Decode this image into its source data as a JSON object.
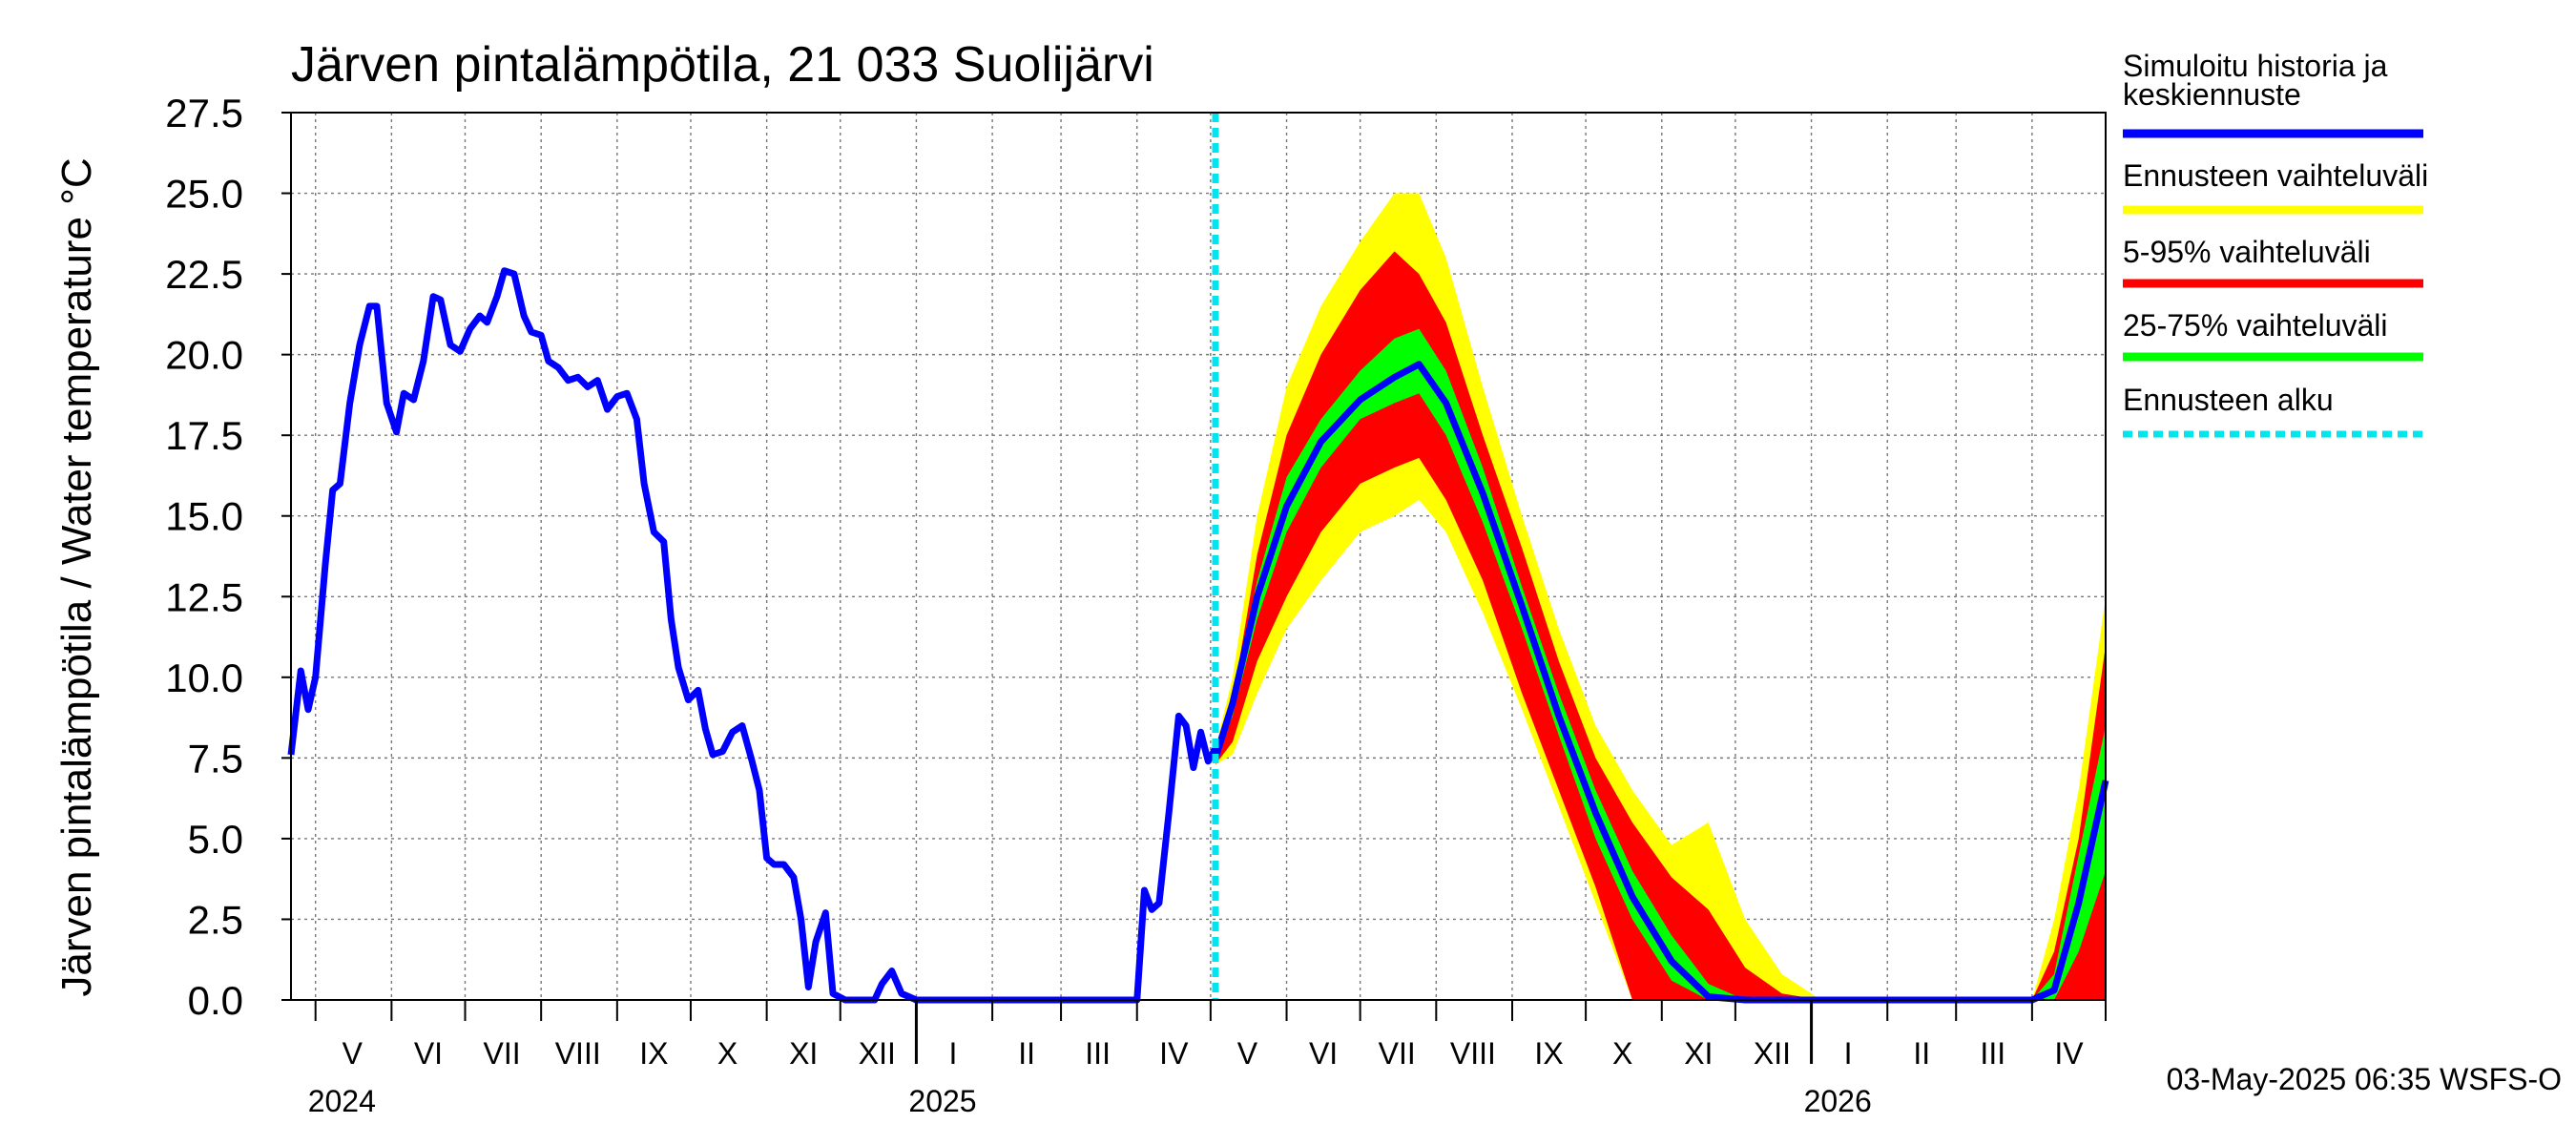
{
  "chart_data": {
    "type": "area",
    "title": "Järven pintalämpötila, 21 033 Suolijärvi",
    "ylabel": "Järven pintalämpötila / Water temperature °C",
    "xlabel": "",
    "ylim": [
      0,
      27.5
    ],
    "yticks": [
      "0.0",
      "2.5",
      "5.0",
      "7.5",
      "10.0",
      "12.5",
      "15.0",
      "17.5",
      "20.0",
      "22.5",
      "25.0",
      "27.5"
    ],
    "xlim": [
      "2024-04-21",
      "2026-05-01"
    ],
    "grid": true,
    "month_ticks": [
      "2024-05-01",
      "2024-06-01",
      "2024-07-01",
      "2024-08-01",
      "2024-09-01",
      "2024-10-01",
      "2024-11-01",
      "2024-12-01",
      "2025-01-01",
      "2025-02-01",
      "2025-03-01",
      "2025-04-01",
      "2025-05-01",
      "2025-06-01",
      "2025-07-01",
      "2025-08-01",
      "2025-09-01",
      "2025-10-01",
      "2025-11-01",
      "2025-12-01",
      "2026-01-01",
      "2026-02-01",
      "2026-03-01",
      "2026-04-01",
      "2026-05-01"
    ],
    "month_labels": [
      {
        "label": "V",
        "date": "2024-05-16"
      },
      {
        "label": "VI",
        "date": "2024-06-16"
      },
      {
        "label": "VII",
        "date": "2024-07-16"
      },
      {
        "label": "VIII",
        "date": "2024-08-16"
      },
      {
        "label": "IX",
        "date": "2024-09-16"
      },
      {
        "label": "X",
        "date": "2024-10-16"
      },
      {
        "label": "XI",
        "date": "2024-11-16"
      },
      {
        "label": "XII",
        "date": "2024-12-16"
      },
      {
        "label": "I",
        "date": "2025-01-16"
      },
      {
        "label": "II",
        "date": "2025-02-15"
      },
      {
        "label": "III",
        "date": "2025-03-16"
      },
      {
        "label": "IV",
        "date": "2025-04-16"
      },
      {
        "label": "V",
        "date": "2025-05-16"
      },
      {
        "label": "VI",
        "date": "2025-06-16"
      },
      {
        "label": "VII",
        "date": "2025-07-16"
      },
      {
        "label": "VIII",
        "date": "2025-08-16"
      },
      {
        "label": "IX",
        "date": "2025-09-16"
      },
      {
        "label": "X",
        "date": "2025-10-16"
      },
      {
        "label": "XI",
        "date": "2025-11-16"
      },
      {
        "label": "XII",
        "date": "2025-12-16"
      },
      {
        "label": "I",
        "date": "2026-01-16"
      },
      {
        "label": "II",
        "date": "2026-02-15"
      },
      {
        "label": "III",
        "date": "2026-03-16"
      },
      {
        "label": "IV",
        "date": "2026-04-16"
      }
    ],
    "year_labels": [
      {
        "label": "2024",
        "date": "2024-05-01"
      },
      {
        "label": "2025",
        "date": "2025-01-01"
      },
      {
        "label": "2026",
        "date": "2026-01-01"
      }
    ],
    "year_boundaries": [
      "2025-01-01",
      "2026-01-01"
    ],
    "forecast_start": "2025-05-03",
    "history": {
      "name": "Simuloitu historia ja keskiennuste",
      "color": "#0000ff",
      "points": [
        [
          "2024-04-21",
          7.6
        ],
        [
          "2024-04-25",
          10.2
        ],
        [
          "2024-04-28",
          9.0
        ],
        [
          "2024-05-01",
          10.0
        ],
        [
          "2024-05-05",
          13.5
        ],
        [
          "2024-05-08",
          15.8
        ],
        [
          "2024-05-11",
          16.0
        ],
        [
          "2024-05-15",
          18.5
        ],
        [
          "2024-05-19",
          20.3
        ],
        [
          "2024-05-23",
          21.5
        ],
        [
          "2024-05-26",
          21.5
        ],
        [
          "2024-05-30",
          18.5
        ],
        [
          "2024-06-03",
          17.6
        ],
        [
          "2024-06-06",
          18.8
        ],
        [
          "2024-06-10",
          18.6
        ],
        [
          "2024-06-14",
          19.8
        ],
        [
          "2024-06-18",
          21.8
        ],
        [
          "2024-06-21",
          21.7
        ],
        [
          "2024-06-25",
          20.3
        ],
        [
          "2024-06-29",
          20.1
        ],
        [
          "2024-07-03",
          20.8
        ],
        [
          "2024-07-07",
          21.2
        ],
        [
          "2024-07-10",
          21.0
        ],
        [
          "2024-07-14",
          21.8
        ],
        [
          "2024-07-17",
          22.6
        ],
        [
          "2024-07-21",
          22.5
        ],
        [
          "2024-07-25",
          21.2
        ],
        [
          "2024-07-28",
          20.7
        ],
        [
          "2024-08-01",
          20.6
        ],
        [
          "2024-08-04",
          19.8
        ],
        [
          "2024-08-08",
          19.6
        ],
        [
          "2024-08-12",
          19.2
        ],
        [
          "2024-08-16",
          19.3
        ],
        [
          "2024-08-20",
          19.0
        ],
        [
          "2024-08-24",
          19.2
        ],
        [
          "2024-08-28",
          18.3
        ],
        [
          "2024-09-01",
          18.7
        ],
        [
          "2024-09-05",
          18.8
        ],
        [
          "2024-09-09",
          18.0
        ],
        [
          "2024-09-12",
          16.0
        ],
        [
          "2024-09-16",
          14.5
        ],
        [
          "2024-09-20",
          14.2
        ],
        [
          "2024-09-23",
          11.8
        ],
        [
          "2024-09-26",
          10.3
        ],
        [
          "2024-09-30",
          9.3
        ],
        [
          "2024-10-04",
          9.6
        ],
        [
          "2024-10-07",
          8.4
        ],
        [
          "2024-10-10",
          7.6
        ],
        [
          "2024-10-14",
          7.7
        ],
        [
          "2024-10-18",
          8.3
        ],
        [
          "2024-10-22",
          8.5
        ],
        [
          "2024-10-26",
          7.4
        ],
        [
          "2024-10-29",
          6.5
        ],
        [
          "2024-11-01",
          4.4
        ],
        [
          "2024-11-04",
          4.2
        ],
        [
          "2024-11-08",
          4.2
        ],
        [
          "2024-11-12",
          3.8
        ],
        [
          "2024-11-15",
          2.5
        ],
        [
          "2024-11-18",
          0.4
        ],
        [
          "2024-11-21",
          1.8
        ],
        [
          "2024-11-25",
          2.7
        ],
        [
          "2024-11-28",
          0.2
        ],
        [
          "2024-12-03",
          0.0
        ],
        [
          "2024-12-10",
          0.0
        ],
        [
          "2024-12-15",
          0.0
        ],
        [
          "2024-12-18",
          0.5
        ],
        [
          "2024-12-22",
          0.9
        ],
        [
          "2024-12-26",
          0.2
        ],
        [
          "2025-01-01",
          0.0
        ],
        [
          "2025-02-01",
          0.0
        ],
        [
          "2025-03-01",
          0.0
        ],
        [
          "2025-04-01",
          0.0
        ],
        [
          "2025-04-04",
          3.4
        ],
        [
          "2025-04-07",
          2.8
        ],
        [
          "2025-04-10",
          3.0
        ],
        [
          "2025-04-14",
          5.8
        ],
        [
          "2025-04-18",
          8.8
        ],
        [
          "2025-04-21",
          8.5
        ],
        [
          "2025-04-24",
          7.2
        ],
        [
          "2025-04-27",
          8.3
        ],
        [
          "2025-04-30",
          7.4
        ],
        [
          "2025-05-03",
          7.8
        ]
      ]
    },
    "forecast": {
      "dates": [
        "2025-05-03",
        "2025-05-10",
        "2025-05-20",
        "2025-06-01",
        "2025-06-15",
        "2025-07-01",
        "2025-07-15",
        "2025-07-25",
        "2025-08-05",
        "2025-08-20",
        "2025-09-05",
        "2025-09-20",
        "2025-10-05",
        "2025-10-20",
        "2025-11-05",
        "2025-11-20",
        "2025-12-05",
        "2025-12-20",
        "2026-01-05",
        "2026-02-01",
        "2026-03-01",
        "2026-04-01",
        "2026-04-10",
        "2026-04-20",
        "2026-05-01"
      ],
      "bands": [
        {
          "name": "Ennusteen vaihteluväli",
          "color": "#ffff00",
          "lower": [
            7.3,
            7.6,
            9.5,
            11.5,
            13.0,
            14.5,
            15.0,
            15.5,
            14.5,
            12.0,
            9.0,
            6.0,
            3.0,
            0.0,
            0.0,
            0.0,
            0.0,
            0.0,
            0.0,
            0.0,
            0.0,
            0.0,
            0.0,
            0.0,
            0.0
          ],
          "upper": [
            7.8,
            10.0,
            15.0,
            19.0,
            21.5,
            23.5,
            25.0,
            25.0,
            23.0,
            19.0,
            15.0,
            11.5,
            8.5,
            6.5,
            4.8,
            5.5,
            2.5,
            0.8,
            0.0,
            0.0,
            0.0,
            0.0,
            2.5,
            6.5,
            12.5
          ]
        },
        {
          "name": "5-95% vaihteluväli",
          "color": "#ff0000",
          "lower": [
            7.3,
            8.0,
            10.5,
            12.5,
            14.5,
            16.0,
            16.5,
            16.8,
            15.5,
            13.0,
            9.5,
            6.5,
            3.5,
            0.0,
            0.0,
            0.0,
            0.0,
            0.0,
            0.0,
            0.0,
            0.0,
            0.0,
            0.0,
            0.0,
            0.0
          ],
          "upper": [
            7.6,
            9.3,
            13.8,
            17.5,
            20.0,
            22.0,
            23.2,
            22.5,
            21.0,
            17.5,
            14.0,
            10.5,
            7.5,
            5.5,
            3.8,
            2.8,
            1.0,
            0.2,
            0.0,
            0.0,
            0.0,
            0.0,
            1.5,
            5.0,
            11.0
          ]
        },
        {
          "name": "25-75% vaihteluväli",
          "color": "#00ff00",
          "lower": [
            7.5,
            8.8,
            11.8,
            14.5,
            16.5,
            18.0,
            18.5,
            18.8,
            17.5,
            14.8,
            11.5,
            8.2,
            5.0,
            2.5,
            0.6,
            0.0,
            0.0,
            0.0,
            0.0,
            0.0,
            0.0,
            0.0,
            0.0,
            1.5,
            4.0
          ],
          "upper": [
            7.6,
            9.5,
            13.0,
            16.2,
            18.0,
            19.5,
            20.5,
            20.8,
            19.5,
            16.5,
            12.8,
            9.5,
            6.5,
            4.0,
            2.0,
            0.5,
            0.0,
            0.0,
            0.0,
            0.0,
            0.0,
            0.0,
            0.8,
            4.5,
            8.5
          ]
        }
      ],
      "median": {
        "name": "Simuloitu historia ja keskiennuste",
        "color": "#0000ff",
        "values": [
          7.5,
          9.2,
          12.5,
          15.3,
          17.3,
          18.6,
          19.3,
          19.7,
          18.5,
          15.7,
          12.2,
          8.8,
          5.8,
          3.2,
          1.2,
          0.1,
          0.0,
          0.0,
          0.0,
          0.0,
          0.0,
          0.0,
          0.3,
          3.0,
          6.8
        ]
      }
    },
    "legend": {
      "placement": "right",
      "items": [
        {
          "label": "Simuloitu historia ja keskiennuste",
          "lines": [
            "Simuloitu historia ja",
            "keskiennuste"
          ],
          "color": "#0000ff",
          "style": "solid"
        },
        {
          "label": "Ennusteen vaihteluväli",
          "lines": [
            "Ennusteen vaihteluväli"
          ],
          "color": "#ffff00",
          "style": "solid"
        },
        {
          "label": "5-95% vaihteluväli",
          "lines": [
            "5-95% vaihteluväli"
          ],
          "color": "#ff0000",
          "style": "solid"
        },
        {
          "label": "25-75% vaihteluväli",
          "lines": [
            "25-75% vaihteluväli"
          ],
          "color": "#00ff00",
          "style": "solid"
        },
        {
          "label": "Ennusteen alku",
          "lines": [
            "Ennusteen alku"
          ],
          "color": "#00e5ee",
          "style": "dashed"
        }
      ]
    },
    "footer": "03-May-2025 06:35 WSFS-O"
  }
}
